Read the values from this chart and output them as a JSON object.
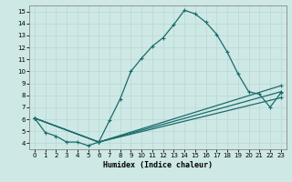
{
  "xlabel": "Humidex (Indice chaleur)",
  "bg_color": "#cde8e5",
  "line_color": "#1a6b6b",
  "xlim": [
    -0.5,
    23.5
  ],
  "ylim": [
    3.5,
    15.5
  ],
  "xticks": [
    0,
    1,
    2,
    3,
    4,
    5,
    6,
    7,
    8,
    9,
    10,
    11,
    12,
    13,
    14,
    15,
    16,
    17,
    18,
    19,
    20,
    21,
    22,
    23
  ],
  "yticks": [
    4,
    5,
    6,
    7,
    8,
    9,
    10,
    11,
    12,
    13,
    14,
    15
  ],
  "series": [
    {
      "x": [
        0,
        1,
        2,
        3,
        4,
        5,
        6,
        7,
        8,
        9,
        10,
        11,
        12,
        13,
        14,
        15,
        16,
        17,
        18,
        19,
        20,
        21,
        22,
        23
      ],
      "y": [
        6.1,
        4.9,
        4.6,
        4.1,
        4.1,
        3.8,
        4.1,
        5.9,
        7.7,
        10.0,
        11.1,
        12.1,
        12.8,
        13.9,
        15.1,
        14.8,
        14.1,
        13.1,
        11.6,
        9.8,
        8.3,
        8.1,
        7.0,
        8.2
      ]
    },
    {
      "x": [
        0,
        6,
        23
      ],
      "y": [
        6.1,
        4.1,
        8.8
      ]
    },
    {
      "x": [
        0,
        6,
        23
      ],
      "y": [
        6.1,
        4.1,
        8.3
      ]
    },
    {
      "x": [
        0,
        6,
        23
      ],
      "y": [
        6.1,
        4.1,
        7.8
      ]
    }
  ]
}
